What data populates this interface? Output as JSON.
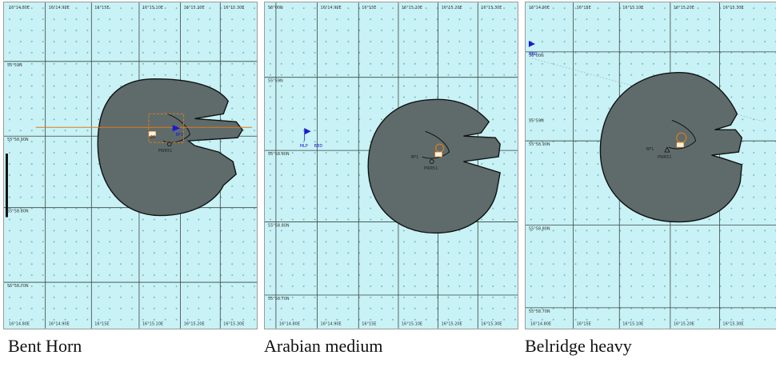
{
  "panels": [
    {
      "caption": "Bent Horn",
      "top_ticks": [
        "16°14.80E",
        "16°14.90E",
        "16°15E",
        "16°15.10E",
        "16°15.20E",
        "16°15.30E"
      ],
      "left_ticks": [
        "55°59N",
        "55°58.90N",
        "55°58.80N",
        "55°58.70N"
      ],
      "bottom_ticks": [
        "16°14.80E",
        "16°14.90E",
        "16°15E",
        "16°15.10E",
        "16°15.20E",
        "16°15.30E"
      ],
      "labels": [
        "PWR51",
        "20"
      ],
      "blue_labels": [
        "BF1"
      ]
    },
    {
      "caption": "Arabian medium",
      "top_ticks": [
        "56°00N",
        "16°14.90E",
        "16°15E",
        "16°15.10E",
        "16°15.20E",
        "16°15.30E"
      ],
      "left_ticks": [
        "55°59N",
        "55°58.90N",
        "55°58.80N",
        "55°58.70N"
      ],
      "bottom_ticks": [
        "16°14.80E",
        "16°14.90E",
        "16°15E",
        "16°15.10E",
        "16°15.20E",
        "16°15.30E"
      ],
      "labels": [
        "BF1",
        "PWR51"
      ],
      "blue_labels": [
        "MLP",
        "BBD"
      ]
    },
    {
      "caption": "Belridge heavy",
      "top_ticks": [
        "16°14.90E",
        "16°15E",
        "16°15.10E",
        "16°15.20E",
        "16°15.30E"
      ],
      "left_ticks": [
        "56°00N",
        "55°59N",
        "55°58.90N",
        "55°58.80N",
        "55°58.70N"
      ],
      "bottom_ticks": [
        "16°14.80E",
        "16°15E",
        "16°15.10E",
        "16°15.20E",
        "16°15.30E"
      ],
      "labels": [
        "BF1",
        "PWR51"
      ],
      "blue_labels": [
        "BBD"
      ]
    }
  ],
  "colors": {
    "water": "#c8f2f5",
    "slick": "#5f6b6b",
    "grid": "#3a4444",
    "accent_blue": "#1a1ad0",
    "accent_orange": "#e07b18"
  }
}
